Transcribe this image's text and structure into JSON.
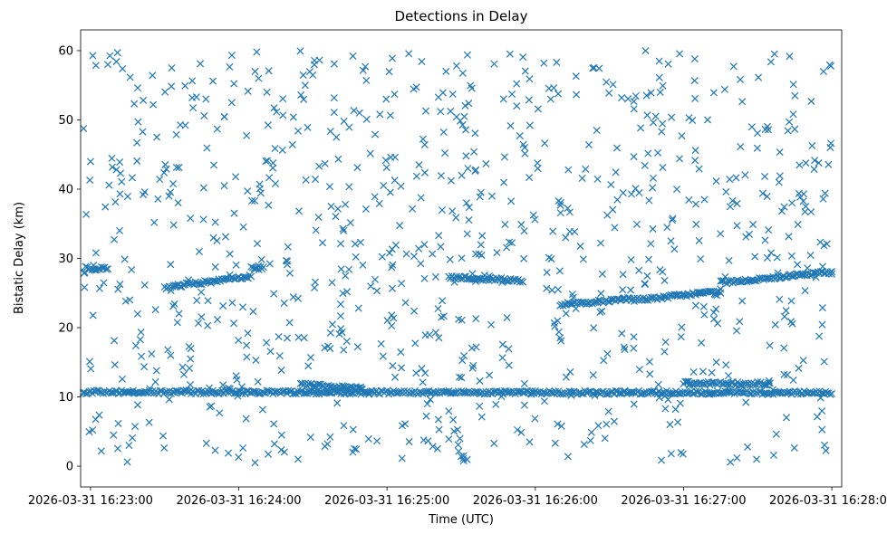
{
  "chart_data": {
    "type": "scatter",
    "title": "Detections in Delay",
    "xlabel": "Time (UTC)",
    "ylabel": "Bistatic Delay (km)",
    "marker": "x",
    "color": "#1f77b4",
    "x_ticks": [
      {
        "t": "2026-03-31 16:23:00",
        "label": "2026-03-31 16:23:00"
      },
      {
        "t": "2026-03-31 16:24:00",
        "label": "2026-03-31 16:24:00"
      },
      {
        "t": "2026-03-31 16:25:00",
        "label": "2026-03-31 16:25:00"
      },
      {
        "t": "2026-03-31 16:26:00",
        "label": "2026-03-31 16:26:00"
      },
      {
        "t": "2026-03-31 16:27:00",
        "label": "2026-03-31 16:27:00"
      },
      {
        "t": "2026-03-31 16:28:00",
        "label": "2026-03-31 16:28:00"
      }
    ],
    "y_ticks": [
      0,
      10,
      20,
      30,
      40,
      50,
      60
    ],
    "xlim": [
      "2026-03-31 16:22:56",
      "2026-03-31 16:28:04"
    ],
    "ylim": [
      -3,
      63
    ],
    "tracks": [
      {
        "t0": "2026-03-31 16:22:57",
        "t1": "2026-03-31 16:28:00",
        "delay0": 10.7,
        "delay1": 10.6
      },
      {
        "t0": "2026-03-31 16:22:58",
        "t1": "2026-03-31 16:23:07",
        "delay0": 28.6,
        "delay1": 28.5
      },
      {
        "t0": "2026-03-31 16:23:30",
        "t1": "2026-03-31 16:24:05",
        "delay0": 25.8,
        "delay1": 27.4
      },
      {
        "t0": "2026-03-31 16:24:05",
        "t1": "2026-03-31 16:24:10",
        "delay0": 28.6,
        "delay1": 28.5
      },
      {
        "t0": "2026-03-31 16:24:25",
        "t1": "2026-03-31 16:24:50",
        "delay0": 11.8,
        "delay1": 11.2
      },
      {
        "t0": "2026-03-31 16:25:25",
        "t1": "2026-03-31 16:25:55",
        "delay0": 27.3,
        "delay1": 26.8
      },
      {
        "t0": "2026-03-31 16:26:10",
        "t1": "2026-03-31 16:26:40",
        "delay0": 23.3,
        "delay1": 24.2
      },
      {
        "t0": "2026-03-31 16:26:40",
        "t1": "2026-03-31 16:27:15",
        "delay0": 24.0,
        "delay1": 25.2
      },
      {
        "t0": "2026-03-31 16:27:00",
        "t1": "2026-03-31 16:27:35",
        "delay0": 12.0,
        "delay1": 11.9
      },
      {
        "t0": "2026-03-31 16:27:15",
        "t1": "2026-03-31 16:28:00",
        "delay0": 26.5,
        "delay1": 28.0
      }
    ],
    "noise_points": 900
  }
}
